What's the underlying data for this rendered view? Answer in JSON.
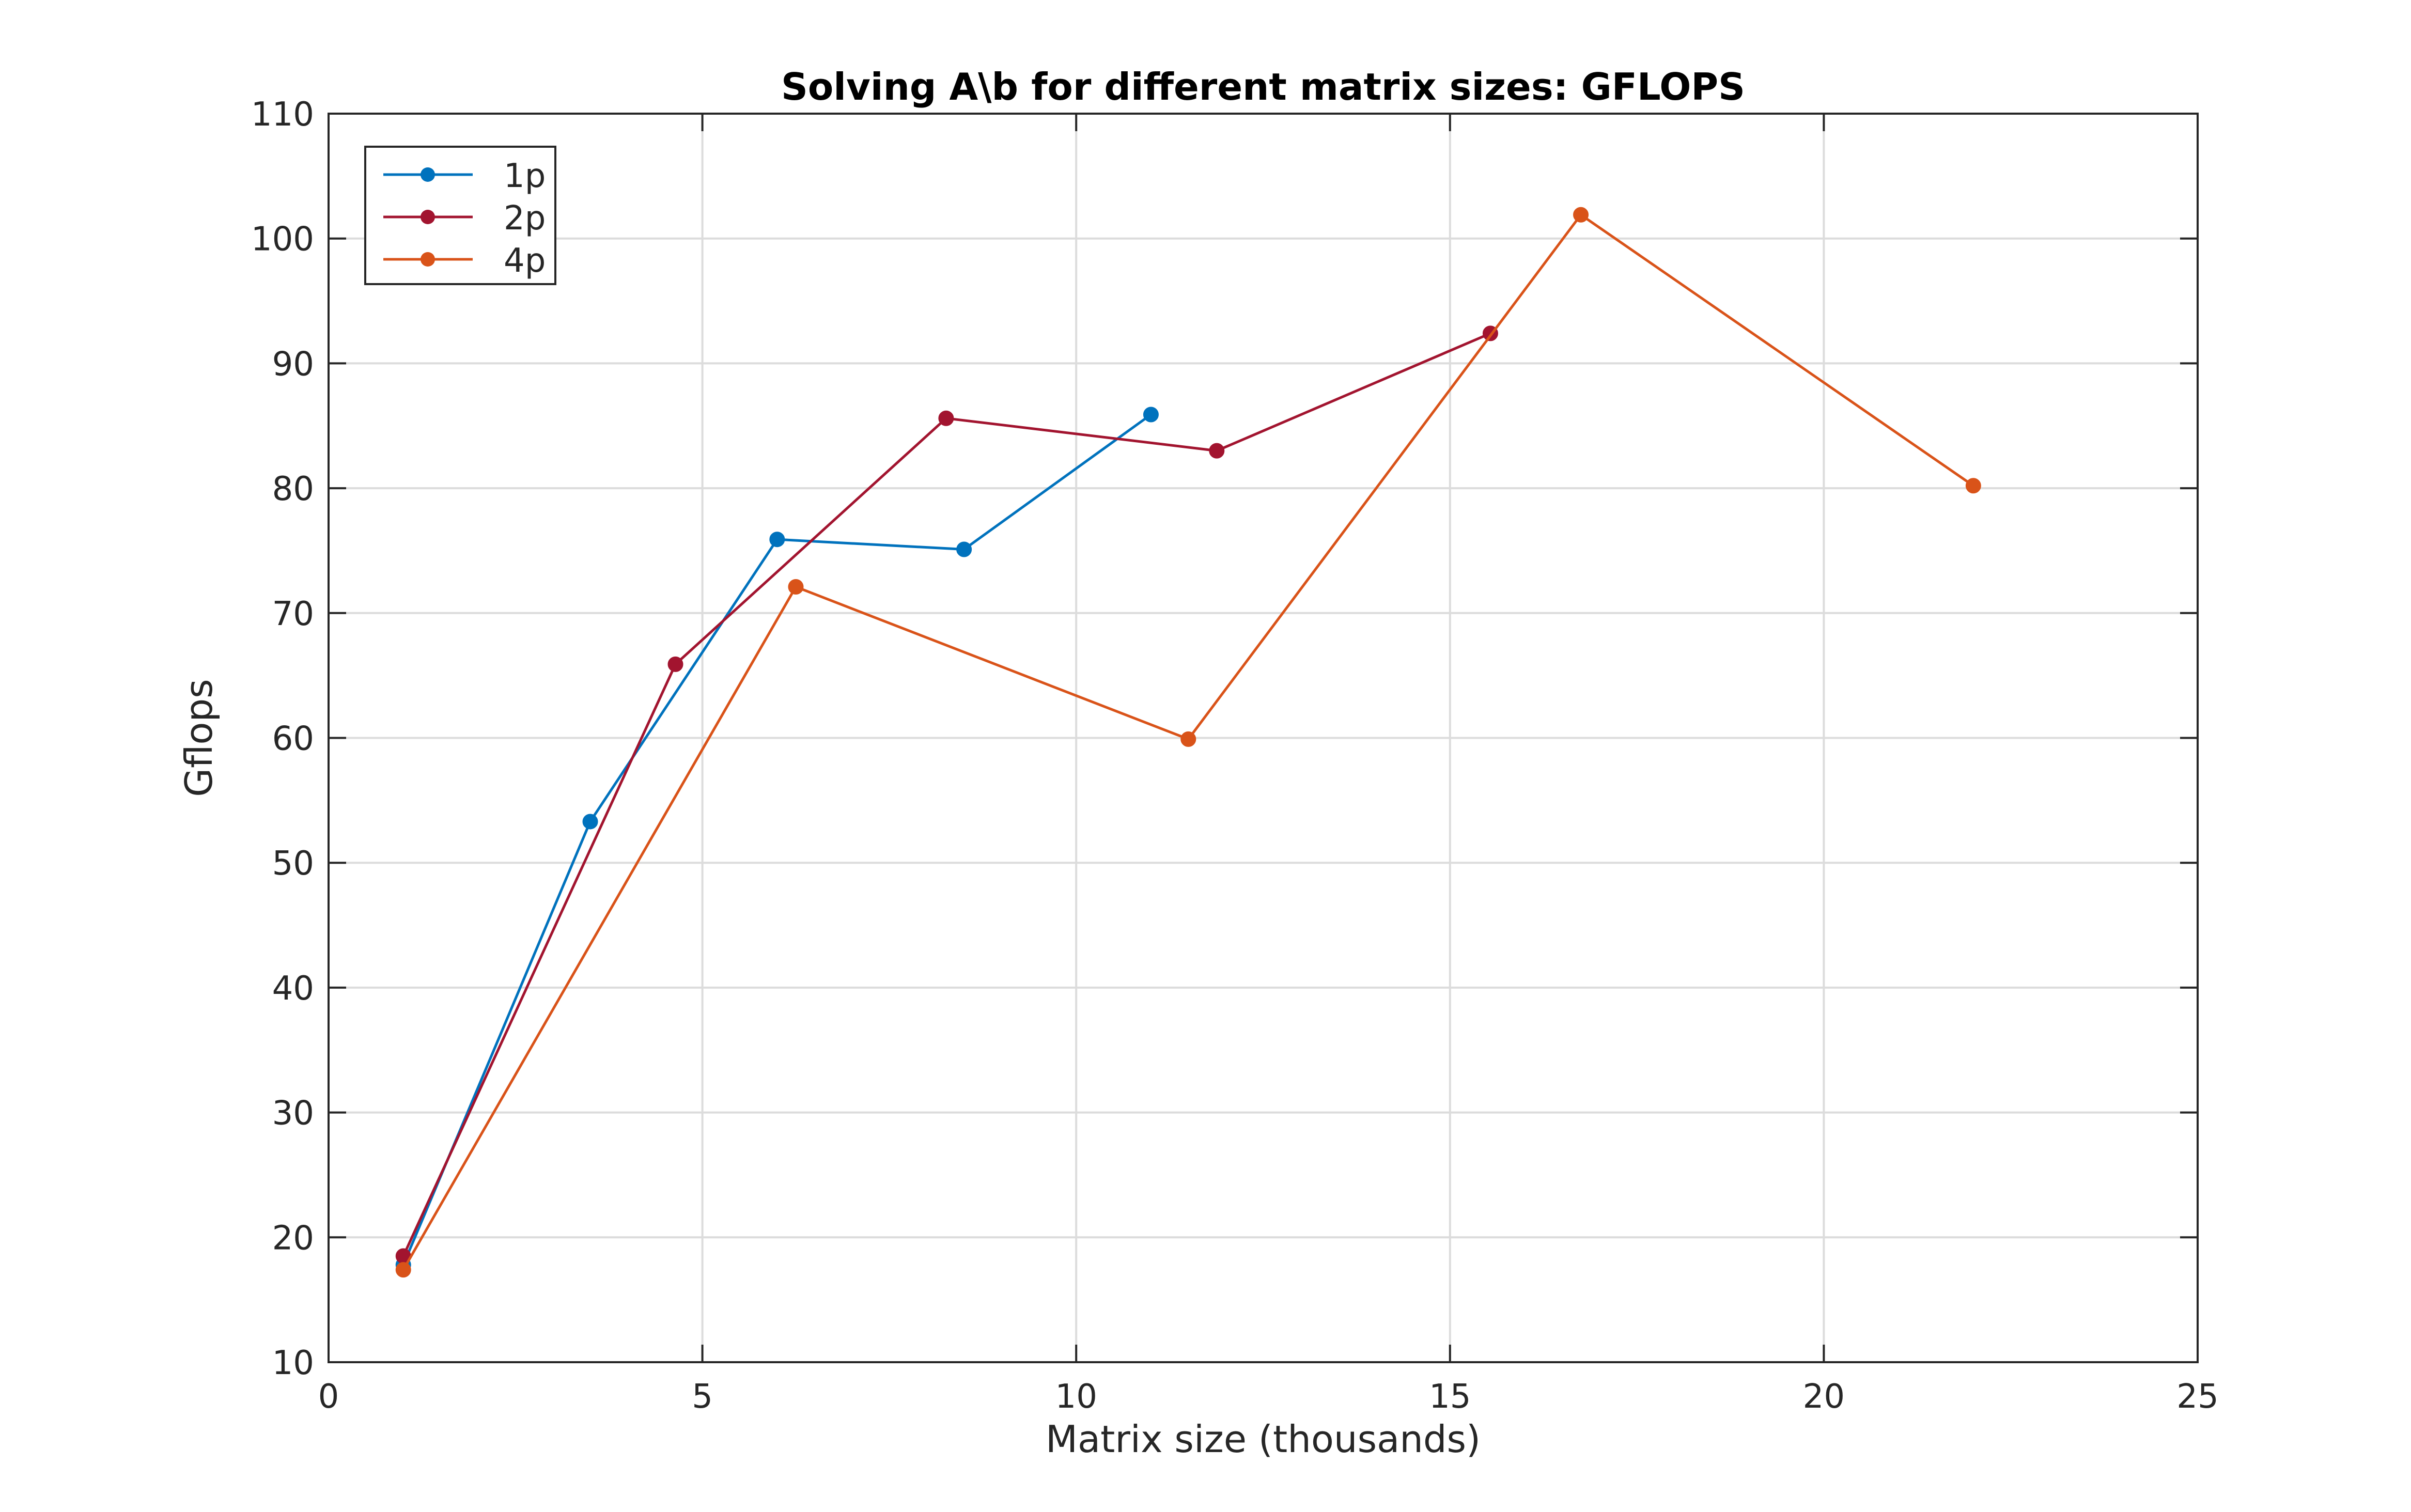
{
  "chart_data": {
    "type": "line",
    "title": "Solving A\\b for different matrix sizes: GFLOPS",
    "xlabel": "Matrix size (thousands)",
    "ylabel": "Gflops",
    "xlim": [
      0,
      25
    ],
    "ylim": [
      10,
      110
    ],
    "xticks": [
      0,
      5,
      10,
      15,
      20,
      25
    ],
    "yticks": [
      10,
      20,
      30,
      40,
      50,
      60,
      70,
      80,
      90,
      100,
      110
    ],
    "grid": true,
    "legend_position": "top-left",
    "series": [
      {
        "name": "1p",
        "color": "#0072BD",
        "x": [
          1,
          3.5,
          6,
          8.5,
          11
        ],
        "y": [
          17.8,
          53.3,
          75.9,
          75.1,
          85.9
        ]
      },
      {
        "name": "2p",
        "color": "#A2142F",
        "x": [
          1,
          4.64,
          8.26,
          11.88,
          15.54
        ],
        "y": [
          18.5,
          65.9,
          85.6,
          83.0,
          92.4
        ]
      },
      {
        "name": "4p",
        "color": "#D95319",
        "x": [
          1,
          6.25,
          11.5,
          16.75,
          22
        ],
        "y": [
          17.4,
          72.1,
          59.9,
          101.9,
          80.2
        ]
      }
    ]
  }
}
